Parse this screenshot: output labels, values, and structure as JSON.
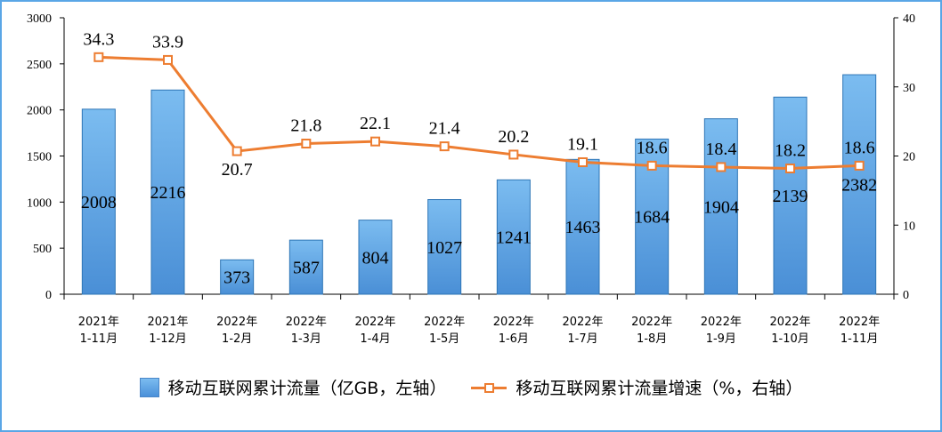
{
  "chart_data": {
    "type": "bar+line",
    "categories": [
      [
        "2021年",
        "1-11月"
      ],
      [
        "2021年",
        "1-12月"
      ],
      [
        "2022年",
        "1-2月"
      ],
      [
        "2022年",
        "1-3月"
      ],
      [
        "2022年",
        "1-4月"
      ],
      [
        "2022年",
        "1-5月"
      ],
      [
        "2022年",
        "1-6月"
      ],
      [
        "2022年",
        "1-7月"
      ],
      [
        "2022年",
        "1-8月"
      ],
      [
        "2022年",
        "1-9月"
      ],
      [
        "2022年",
        "1-10月"
      ],
      [
        "2022年",
        "1-11月"
      ]
    ],
    "series": [
      {
        "name": "移动互联网累计流量（亿GB，左轴）",
        "type": "bar",
        "axis": "left",
        "values": [
          2008,
          2216,
          373,
          587,
          804,
          1027,
          1241,
          1463,
          1684,
          1904,
          2139,
          2382
        ],
        "labels": [
          "2008",
          "2216",
          "373",
          "587",
          "804",
          "1027",
          "1241",
          "1463",
          "1684",
          "1904",
          "2139",
          "2382"
        ]
      },
      {
        "name": "移动互联网累计流量增速（%，右轴）",
        "type": "line",
        "axis": "right",
        "values": [
          34.3,
          33.9,
          20.7,
          21.8,
          22.1,
          21.4,
          20.2,
          19.1,
          18.6,
          18.4,
          18.2,
          18.6
        ],
        "labels": [
          "34.3",
          "33.9",
          "20.7",
          "21.8",
          "22.1",
          "21.4",
          "20.2",
          "19.1",
          "18.6",
          "18.4",
          "18.2",
          "18.6"
        ]
      }
    ],
    "y_left": {
      "lim": [
        0,
        3000
      ],
      "ticks": [
        0,
        500,
        1000,
        1500,
        2000,
        2500,
        3000
      ],
      "tick_labels": [
        "0",
        "500",
        "1000",
        "1500",
        "2000",
        "2500",
        "3000"
      ]
    },
    "y_right": {
      "lim": [
        0,
        40
      ],
      "ticks": [
        0,
        10,
        20,
        30,
        40
      ],
      "tick_labels": [
        "0",
        "10",
        "20",
        "30",
        "40"
      ]
    },
    "grid": false,
    "legend_position": "bottom",
    "colors": {
      "bar": "#5b9bd5",
      "bar_edge": "#2e75b6",
      "line": "#ed7d31",
      "axis": "#000000"
    }
  }
}
